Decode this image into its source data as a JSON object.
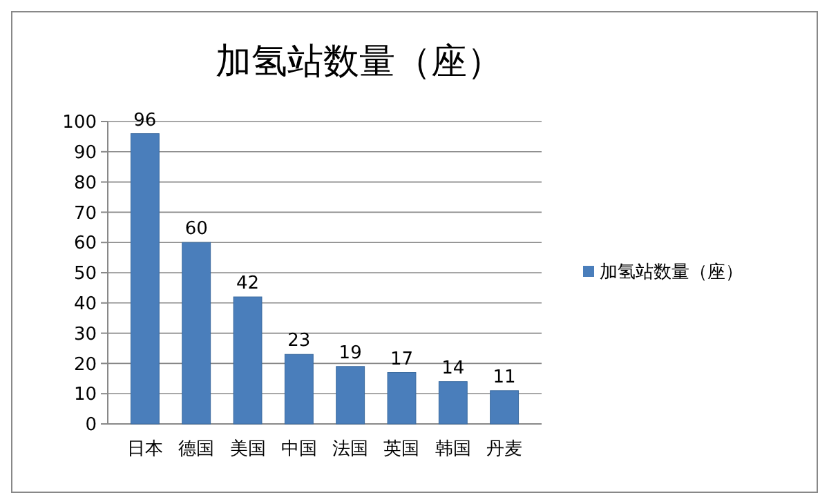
{
  "chart_data": {
    "type": "bar",
    "title": "加氢站数量（座）",
    "categories": [
      "日本",
      "德国",
      "美国",
      "中国",
      "法国",
      "英国",
      "韩国",
      "丹麦"
    ],
    "series": [
      {
        "name": "加氢站数量（座）",
        "color": "#4a7ebb",
        "values": [
          96,
          60,
          42,
          23,
          19,
          17,
          14,
          11
        ]
      }
    ],
    "ylim": [
      0,
      100
    ],
    "yticks": [
      0,
      10,
      20,
      30,
      40,
      50,
      60,
      70,
      80,
      90,
      100
    ],
    "grid": "y",
    "legend": "right",
    "data_labels": true
  }
}
